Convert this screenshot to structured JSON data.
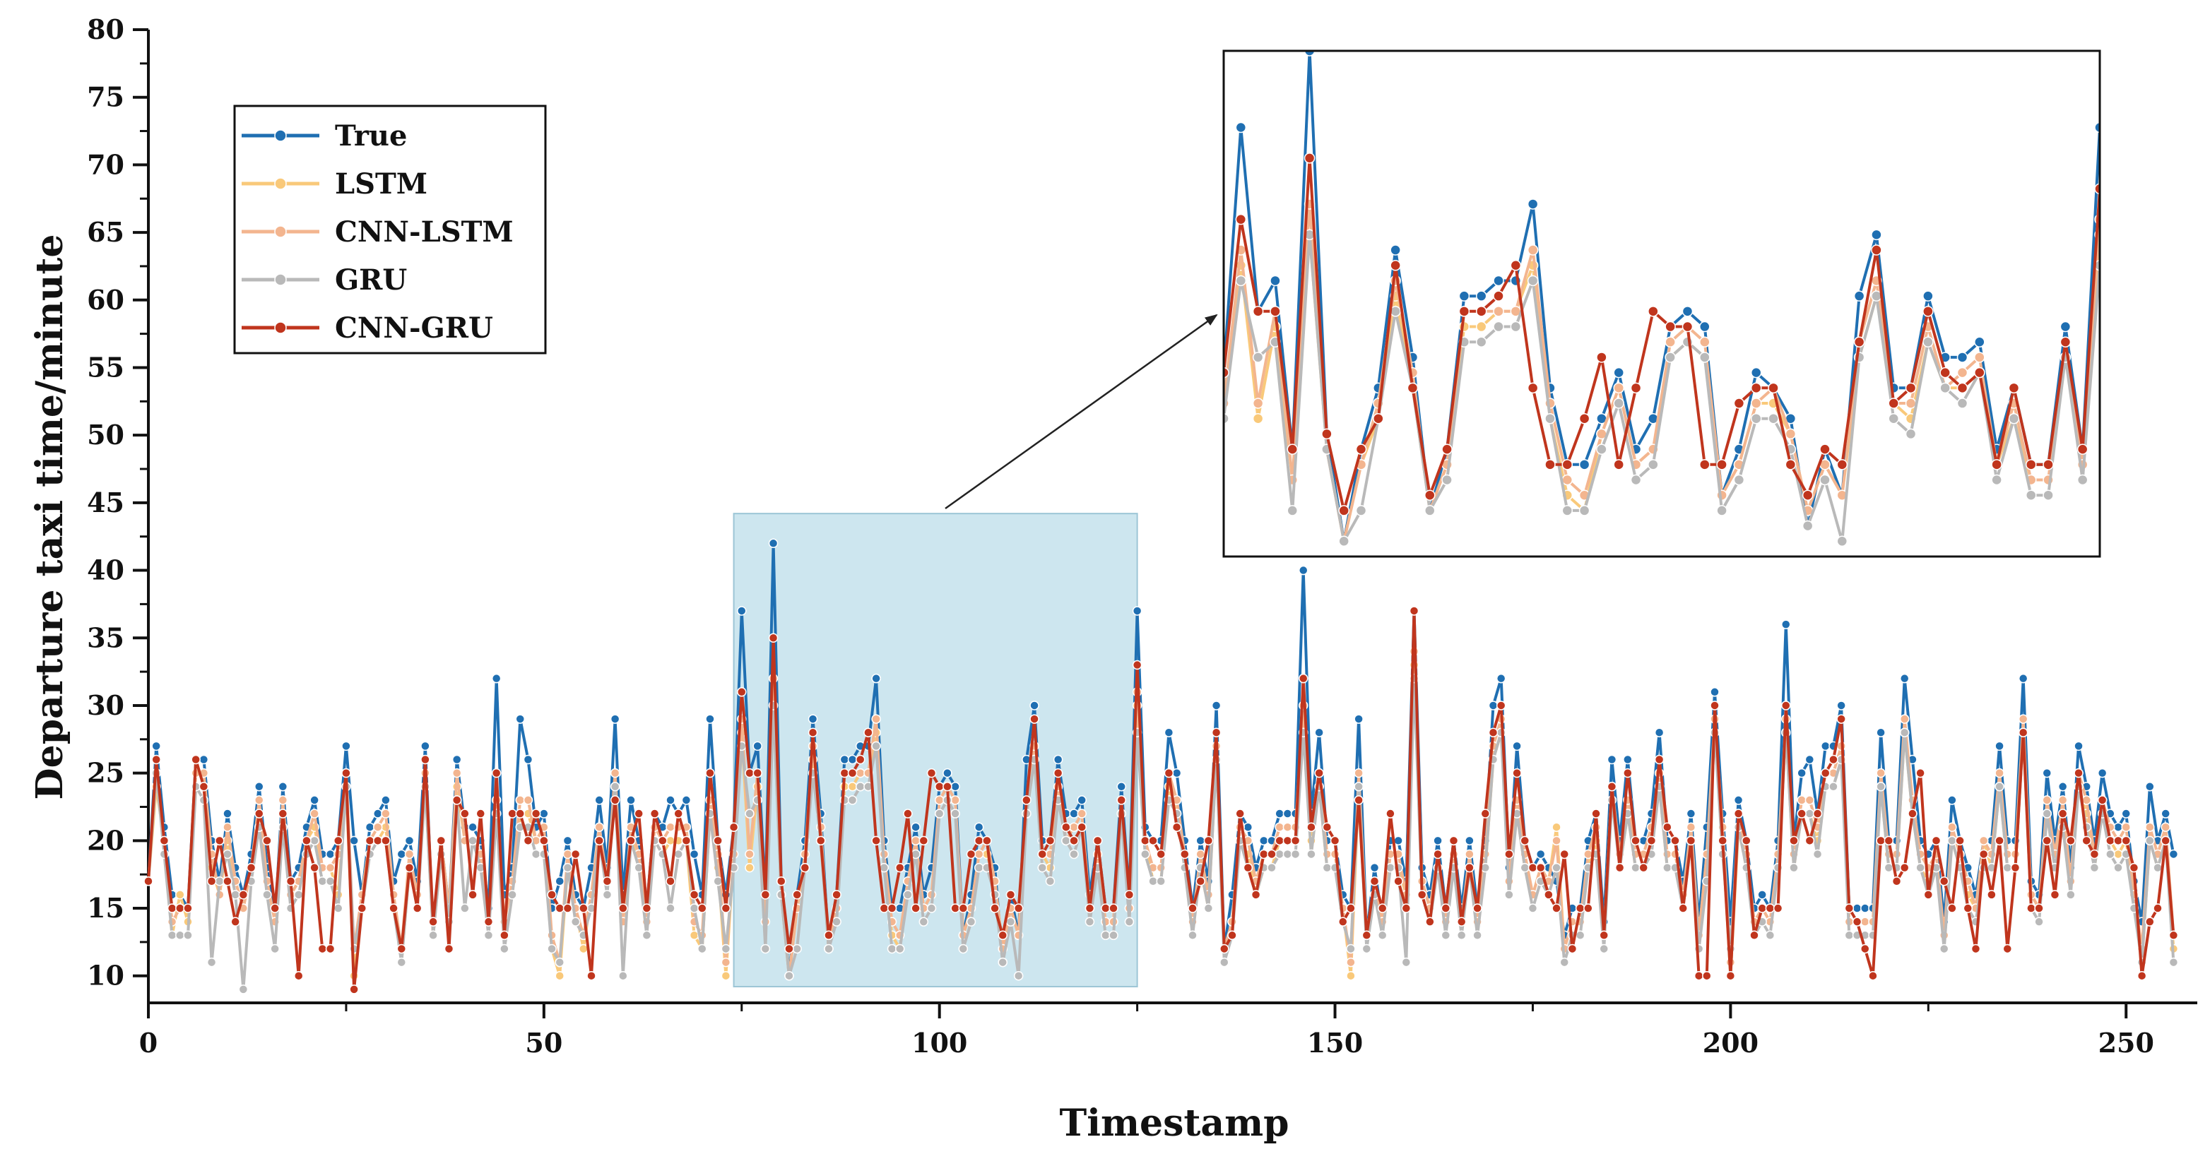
{
  "chart_data": {
    "type": "line",
    "xlabel": "Timestamp",
    "ylabel": "Departure taxi time/minute",
    "xlim": [
      0,
      259
    ],
    "ylim": [
      8,
      80
    ],
    "xticks": [
      0,
      50,
      100,
      150,
      200,
      250
    ],
    "yticks": [
      10,
      15,
      20,
      25,
      30,
      35,
      40,
      45,
      50,
      55,
      60,
      65,
      70,
      75,
      80
    ],
    "legend_position": "top-left",
    "highlight_range": [
      74,
      125
    ],
    "inset": {
      "position": "top-right",
      "x_range": [
        74,
        125
      ],
      "y_range": [
        9,
        42
      ]
    },
    "series": [
      {
        "name": "True",
        "color": "#1f6fb2",
        "values": [
          17,
          27,
          21,
          16,
          16,
          15,
          26,
          26,
          20,
          17,
          22,
          18,
          16,
          19,
          24,
          18,
          14,
          24,
          17,
          18,
          21,
          23,
          19,
          19,
          20,
          27,
          20,
          16,
          21,
          22,
          23,
          17,
          19,
          20,
          17,
          27,
          13,
          20,
          15,
          26,
          21,
          21,
          20,
          15,
          32,
          16,
          18,
          29,
          26,
          21,
          22,
          15,
          17,
          20,
          16,
          15,
          18,
          23,
          18,
          29,
          16,
          23,
          20,
          15,
          22,
          21,
          23,
          22,
          23,
          19,
          16,
          29,
          20,
          16,
          21,
          37,
          25,
          27,
          16,
          42,
          17,
          10,
          16,
          20,
          29,
          22,
          12,
          16,
          26,
          26,
          27,
          27,
          32,
          20,
          15,
          15,
          18,
          21,
          16,
          18,
          24,
          25,
          24,
          13,
          16,
          21,
          20,
          18,
          11,
          16,
          13,
          26,
          30,
          20,
          20,
          26,
          22,
          22,
          23,
          16,
          20,
          15,
          15,
          24,
          16,
          37,
          21,
          20,
          20,
          28,
          25,
          20,
          15,
          20,
          17,
          30,
          12,
          16,
          22,
          21,
          18,
          20,
          20,
          22,
          22,
          22,
          40,
          22,
          28,
          20,
          20,
          16,
          15,
          29,
          13,
          18,
          14,
          20,
          20,
          17,
          37,
          18,
          16,
          20,
          15,
          20,
          15,
          20,
          15,
          20,
          30,
          32,
          18,
          27,
          20,
          18,
          19,
          18,
          17,
          13,
          15,
          15,
          20,
          22,
          14,
          26,
          20,
          26,
          20,
          20,
          22,
          28,
          20,
          20,
          17,
          22,
          14,
          21,
          31,
          22,
          14,
          23,
          20,
          15,
          16,
          15,
          20,
          36,
          20,
          25,
          26,
          22,
          27,
          27,
          30,
          15,
          15,
          15,
          15,
          28,
          20,
          20,
          32,
          26,
          20,
          19,
          20,
          14,
          23,
          20,
          18,
          16,
          20,
          20,
          27,
          20,
          20,
          32,
          17,
          16,
          25,
          20,
          24,
          18,
          27,
          24,
          20,
          25,
          22,
          21,
          22,
          17,
          14,
          24,
          20,
          22,
          19
        ]
      },
      {
        "name": "LSTM",
        "color": "#f9c97a",
        "values": [
          17,
          24,
          20,
          13,
          16,
          14,
          24,
          24,
          18,
          16,
          20,
          17,
          15,
          18,
          22,
          17,
          14,
          22,
          16,
          17,
          20,
          21,
          18,
          18,
          16,
          24,
          10,
          16,
          20,
          20,
          21,
          16,
          11,
          18,
          16,
          24,
          13,
          19,
          14,
          24,
          20,
          20,
          19,
          14,
          22,
          14,
          17,
          22,
          22,
          20,
          20,
          12,
          10,
          18,
          15,
          12,
          16,
          20,
          17,
          24,
          14,
          20,
          19,
          14,
          20,
          19,
          20,
          20,
          20,
          13,
          12,
          22,
          18,
          10,
          19,
          28,
          18,
          24,
          14,
          30,
          16,
          10,
          15,
          18,
          26,
          20,
          12,
          15,
          24,
          24,
          25,
          25,
          28,
          18,
          13,
          12,
          17,
          20,
          15,
          16,
          22,
          23,
          22,
          13,
          15,
          19,
          19,
          17,
          12,
          15,
          13,
          22,
          26,
          19,
          18,
          23,
          20,
          20,
          21,
          15,
          18,
          14,
          14,
          22,
          15,
          30,
          20,
          17,
          17,
          24,
          22,
          18,
          14,
          18,
          15,
          26,
          12,
          14,
          20,
          19,
          16,
          18,
          18,
          20,
          20,
          20,
          28,
          20,
          24,
          18,
          18,
          15,
          10,
          24,
          13,
          16,
          14,
          18,
          18,
          16,
          33,
          17,
          15,
          18,
          14,
          18,
          14,
          18,
          14,
          18,
          26,
          28,
          17,
          22,
          18,
          16,
          18,
          17,
          21,
          12,
          14,
          14,
          18,
          20,
          13,
          24,
          18,
          22,
          18,
          18,
          20,
          24,
          18,
          18,
          16,
          20,
          13,
          19,
          28,
          20,
          10,
          21,
          18,
          14,
          15,
          14,
          18,
          28,
          18,
          22,
          22,
          20,
          24,
          24,
          26,
          14,
          14,
          14,
          14,
          24,
          18,
          18,
          28,
          22,
          18,
          17,
          18,
          13,
          20,
          18,
          16,
          15,
          20,
          18,
          24,
          18,
          18,
          28,
          16,
          15,
          22,
          18,
          22,
          17,
          24,
          22,
          18,
          22,
          20,
          19,
          20,
          16,
          11,
          20,
          18,
          20,
          12
        ]
      },
      {
        "name": "CNN-LSTM",
        "color": "#f3b58f",
        "values": [
          17,
          25,
          20,
          14,
          15,
          15,
          25,
          25,
          19,
          16,
          21,
          17,
          15,
          18,
          23,
          17,
          14,
          23,
          16,
          17,
          20,
          22,
          18,
          18,
          19,
          25,
          12,
          16,
          20,
          21,
          22,
          16,
          12,
          19,
          16,
          25,
          13,
          20,
          15,
          25,
          20,
          20,
          19,
          14,
          23,
          14,
          17,
          23,
          23,
          20,
          21,
          13,
          11,
          19,
          15,
          13,
          16,
          21,
          17,
          25,
          14,
          21,
          19,
          14,
          21,
          20,
          21,
          21,
          21,
          14,
          13,
          23,
          19,
          11,
          19,
          29,
          19,
          25,
          14,
          32,
          16,
          10,
          15,
          19,
          27,
          21,
          12,
          15,
          25,
          25,
          25,
          25,
          29,
          19,
          14,
          13,
          17,
          20,
          15,
          16,
          23,
          24,
          23,
          13,
          15,
          19,
          20,
          17,
          12,
          15,
          13,
          23,
          27,
          19,
          19,
          24,
          20,
          21,
          22,
          15,
          19,
          14,
          14,
          23,
          15,
          31,
          20,
          18,
          18,
          25,
          23,
          19,
          14,
          19,
          16,
          27,
          12,
          14,
          21,
          20,
          17,
          19,
          19,
          21,
          21,
          21,
          30,
          21,
          25,
          19,
          19,
          15,
          11,
          25,
          13,
          17,
          14,
          19,
          19,
          16,
          34,
          17,
          15,
          19,
          14,
          19,
          14,
          19,
          14,
          19,
          27,
          29,
          17,
          23,
          19,
          16,
          18,
          17,
          20,
          12,
          14,
          14,
          19,
          21,
          13,
          24,
          19,
          23,
          19,
          19,
          21,
          25,
          19,
          19,
          16,
          21,
          13,
          19,
          29,
          21,
          11,
          22,
          19,
          14,
          15,
          14,
          19,
          29,
          19,
          23,
          23,
          21,
          25,
          25,
          27,
          14,
          14,
          14,
          14,
          25,
          19,
          19,
          29,
          23,
          19,
          18,
          19,
          13,
          21,
          19,
          17,
          15,
          20,
          19,
          25,
          19,
          19,
          29,
          16,
          15,
          23,
          19,
          23,
          17,
          25,
          23,
          19,
          23,
          21,
          20,
          21,
          16,
          12,
          21,
          19,
          21,
          13
        ]
      },
      {
        "name": "GRU",
        "color": "#b9b9b9",
        "values": [
          17,
          25,
          19,
          13,
          13,
          13,
          24,
          23,
          11,
          17,
          19,
          16,
          9,
          17,
          21,
          16,
          12,
          21,
          15,
          16,
          19,
          20,
          17,
          17,
          15,
          24,
          12,
          15,
          19,
          20,
          20,
          15,
          11,
          18,
          15,
          24,
          13,
          19,
          14,
          23,
          15,
          20,
          18,
          13,
          22,
          12,
          16,
          21,
          21,
          19,
          19,
          12,
          11,
          18,
          14,
          13,
          15,
          20,
          16,
          24,
          10,
          20,
          18,
          13,
          20,
          19,
          15,
          19,
          20,
          15,
          12,
          22,
          17,
          12,
          18,
          27,
          22,
          23,
          12,
          30,
          16,
          10,
          12,
          18,
          25,
          20,
          12,
          14,
          23,
          23,
          24,
          24,
          27,
          18,
          12,
          12,
          16,
          19,
          14,
          15,
          22,
          23,
          22,
          12,
          14,
          18,
          18,
          16,
          11,
          14,
          10,
          22,
          26,
          18,
          17,
          23,
          20,
          19,
          21,
          14,
          18,
          13,
          13,
          22,
          14,
          28,
          19,
          17,
          17,
          23,
          22,
          18,
          13,
          18,
          15,
          26,
          11,
          13,
          20,
          18,
          16,
          18,
          18,
          19,
          19,
          19,
          28,
          19,
          24,
          18,
          18,
          14,
          12,
          24,
          12,
          16,
          13,
          18,
          18,
          11,
          32,
          16,
          14,
          18,
          13,
          18,
          13,
          18,
          13,
          18,
          26,
          28,
          16,
          22,
          18,
          15,
          17,
          16,
          18,
          11,
          13,
          13,
          18,
          19,
          12,
          23,
          18,
          22,
          18,
          18,
          19,
          24,
          18,
          18,
          15,
          20,
          12,
          17,
          28,
          19,
          12,
          21,
          18,
          13,
          14,
          13,
          18,
          28,
          18,
          22,
          22,
          19,
          24,
          24,
          26,
          13,
          13,
          13,
          13,
          24,
          18,
          18,
          28,
          22,
          18,
          16,
          18,
          12,
          20,
          18,
          15,
          14,
          18,
          18,
          24,
          18,
          18,
          28,
          15,
          14,
          22,
          18,
          21,
          16,
          24,
          21,
          18,
          22,
          19,
          18,
          19,
          15,
          11,
          20,
          18,
          20,
          11
        ]
      },
      {
        "name": "CNN-GRU",
        "color": "#c0351d",
        "values": [
          17,
          26,
          20,
          15,
          15,
          15,
          26,
          24,
          17,
          20,
          17,
          14,
          16,
          18,
          22,
          20,
          15,
          22,
          17,
          10,
          20,
          18,
          12,
          12,
          20,
          25,
          9,
          15,
          20,
          20,
          20,
          15,
          12,
          18,
          15,
          26,
          14,
          20,
          12,
          23,
          22,
          16,
          22,
          14,
          25,
          13,
          22,
          22,
          20,
          22,
          20,
          16,
          15,
          15,
          19,
          15,
          10,
          20,
          17,
          23,
          15,
          20,
          22,
          15,
          22,
          20,
          17,
          22,
          20,
          16,
          15,
          25,
          20,
          15,
          21,
          31,
          25,
          25,
          16,
          35,
          17,
          12,
          16,
          18,
          28,
          20,
          13,
          16,
          25,
          25,
          26,
          28,
          20,
          15,
          15,
          18,
          22,
          15,
          20,
          25,
          24,
          24,
          15,
          15,
          19,
          20,
          20,
          15,
          13,
          16,
          15,
          23,
          29,
          19,
          20,
          25,
          21,
          20,
          21,
          15,
          20,
          15,
          15,
          23,
          16,
          33,
          20,
          20,
          19,
          25,
          21,
          19,
          15,
          17,
          20,
          28,
          12,
          13,
          22,
          18,
          16,
          19,
          19,
          20,
          20,
          20,
          32,
          21,
          25,
          21,
          20,
          14,
          15,
          23,
          13,
          17,
          15,
          22,
          17,
          15,
          37,
          16,
          14,
          19,
          15,
          20,
          14,
          18,
          15,
          22,
          28,
          30,
          19,
          25,
          20,
          18,
          18,
          16,
          15,
          19,
          12,
          15,
          15,
          22,
          13,
          24,
          18,
          25,
          20,
          18,
          20,
          26,
          21,
          20,
          15,
          20,
          10,
          10,
          30,
          20,
          10,
          22,
          20,
          13,
          15,
          15,
          15,
          30,
          20,
          22,
          20,
          22,
          25,
          26,
          29,
          15,
          14,
          12,
          10,
          20,
          20,
          17,
          18,
          22,
          25,
          16,
          20,
          17,
          15,
          20,
          15,
          12,
          19,
          16,
          20,
          12,
          18,
          28,
          15,
          15,
          20,
          16,
          22,
          20,
          25,
          20,
          19,
          23,
          20,
          20,
          20,
          18,
          10,
          14,
          15,
          20,
          13
        ]
      }
    ]
  }
}
